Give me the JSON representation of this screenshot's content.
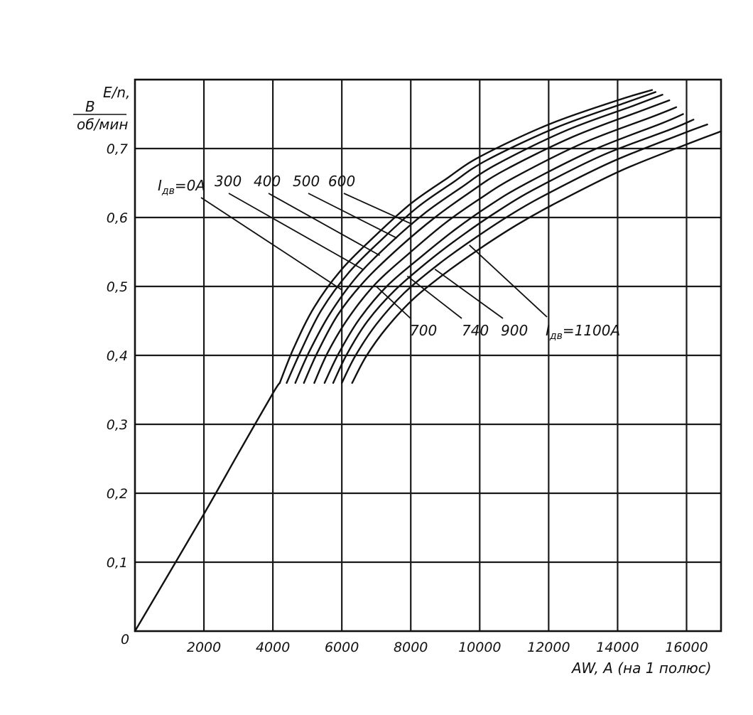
{
  "chart_data": {
    "type": "line",
    "title": "",
    "ylabel": {
      "top": "E/n,",
      "numerator": "B",
      "denominator": "об/мин"
    },
    "xlabel": "AW, A (на 1 полюс)",
    "xlim": [
      0,
      17000
    ],
    "ylim": [
      0,
      0.8
    ],
    "grid": true,
    "x_ticks": [
      "2000",
      "4000",
      "6000",
      "8000",
      "10000",
      "12000",
      "14000",
      "16000"
    ],
    "y_ticks": [
      "0,1",
      "0,2",
      "0,3",
      "0,4",
      "0,5",
      "0,6",
      "0,7"
    ],
    "origin_label": "0",
    "base_line": {
      "name": "I_дв=0A common segment",
      "points": [
        [
          0,
          0
        ],
        [
          2000,
          0.17
        ],
        [
          3000,
          0.258
        ],
        [
          4000,
          0.345
        ],
        [
          4200,
          0.36
        ]
      ]
    },
    "series": [
      {
        "label": "0",
        "points": [
          [
            4200,
            0.36
          ],
          [
            4600,
            0.41
          ],
          [
            5200,
            0.47
          ],
          [
            6000,
            0.525
          ],
          [
            7000,
            0.575
          ],
          [
            8000,
            0.62
          ],
          [
            9000,
            0.655
          ],
          [
            10000,
            0.688
          ],
          [
            12000,
            0.735
          ],
          [
            14000,
            0.77
          ],
          [
            15000,
            0.785
          ]
        ]
      },
      {
        "label": "300",
        "points": [
          [
            4400,
            0.36
          ],
          [
            4800,
            0.405
          ],
          [
            5400,
            0.465
          ],
          [
            6200,
            0.52
          ],
          [
            7200,
            0.57
          ],
          [
            8200,
            0.615
          ],
          [
            9200,
            0.65
          ],
          [
            10200,
            0.683
          ],
          [
            12200,
            0.73
          ],
          [
            14200,
            0.766
          ],
          [
            15100,
            0.782
          ]
        ]
      },
      {
        "label": "400",
        "points": [
          [
            4650,
            0.36
          ],
          [
            5050,
            0.405
          ],
          [
            5650,
            0.46
          ],
          [
            6450,
            0.515
          ],
          [
            7450,
            0.565
          ],
          [
            8450,
            0.608
          ],
          [
            9450,
            0.643
          ],
          [
            10450,
            0.676
          ],
          [
            12450,
            0.725
          ],
          [
            14450,
            0.762
          ],
          [
            15300,
            0.778
          ]
        ]
      },
      {
        "label": "500",
        "points": [
          [
            4900,
            0.36
          ],
          [
            5300,
            0.405
          ],
          [
            5900,
            0.46
          ],
          [
            6700,
            0.51
          ],
          [
            7700,
            0.558
          ],
          [
            8700,
            0.6
          ],
          [
            9700,
            0.636
          ],
          [
            10700,
            0.668
          ],
          [
            12700,
            0.717
          ],
          [
            14700,
            0.755
          ],
          [
            15500,
            0.77
          ]
        ]
      },
      {
        "label": "600",
        "points": [
          [
            5200,
            0.36
          ],
          [
            5600,
            0.405
          ],
          [
            6200,
            0.455
          ],
          [
            7000,
            0.505
          ],
          [
            8000,
            0.55
          ],
          [
            9000,
            0.592
          ],
          [
            10000,
            0.627
          ],
          [
            11000,
            0.658
          ],
          [
            13000,
            0.708
          ],
          [
            15000,
            0.746
          ],
          [
            15700,
            0.76
          ]
        ]
      },
      {
        "label": "700",
        "points": [
          [
            5500,
            0.36
          ],
          [
            5900,
            0.402
          ],
          [
            6500,
            0.452
          ],
          [
            7300,
            0.5
          ],
          [
            8300,
            0.543
          ],
          [
            9300,
            0.583
          ],
          [
            10300,
            0.618
          ],
          [
            11300,
            0.648
          ],
          [
            13300,
            0.698
          ],
          [
            15300,
            0.737
          ],
          [
            15900,
            0.75
          ]
        ]
      },
      {
        "label": "740",
        "points": [
          [
            5750,
            0.36
          ],
          [
            6150,
            0.402
          ],
          [
            6750,
            0.45
          ],
          [
            7550,
            0.495
          ],
          [
            8550,
            0.538
          ],
          [
            9550,
            0.576
          ],
          [
            10550,
            0.61
          ],
          [
            11550,
            0.64
          ],
          [
            13550,
            0.69
          ],
          [
            15550,
            0.728
          ],
          [
            16200,
            0.742
          ]
        ]
      },
      {
        "label": "900",
        "points": [
          [
            6000,
            0.36
          ],
          [
            6400,
            0.4
          ],
          [
            7000,
            0.445
          ],
          [
            7800,
            0.49
          ],
          [
            8800,
            0.532
          ],
          [
            9800,
            0.568
          ],
          [
            10800,
            0.601
          ],
          [
            11800,
            0.63
          ],
          [
            13800,
            0.68
          ],
          [
            15800,
            0.72
          ],
          [
            16600,
            0.735
          ]
        ]
      },
      {
        "label": "1100",
        "points": [
          [
            6300,
            0.36
          ],
          [
            6700,
            0.398
          ],
          [
            7300,
            0.44
          ],
          [
            8100,
            0.483
          ],
          [
            9100,
            0.523
          ],
          [
            10100,
            0.558
          ],
          [
            11100,
            0.59
          ],
          [
            12100,
            0.618
          ],
          [
            14100,
            0.668
          ],
          [
            16100,
            0.708
          ],
          [
            17000,
            0.725
          ]
        ]
      }
    ],
    "annotations": [
      {
        "text": "=0A",
        "prefix": "I",
        "sub": "дв",
        "position": "above-left",
        "target_series": "0"
      },
      {
        "text": "300",
        "position": "above-left",
        "target_series": "300"
      },
      {
        "text": "400",
        "position": "above-left",
        "target_series": "400"
      },
      {
        "text": "500",
        "position": "above-left",
        "target_series": "500"
      },
      {
        "text": "600",
        "position": "above-left",
        "target_series": "600"
      },
      {
        "text": "700",
        "position": "below-right",
        "target_series": "700"
      },
      {
        "text": "740",
        "position": "below-right",
        "target_series": "740"
      },
      {
        "text": "900",
        "position": "below-right",
        "target_series": "900"
      },
      {
        "text": "=1100A",
        "prefix": "I",
        "sub": "дв",
        "position": "below-right",
        "target_series": "1100"
      }
    ]
  }
}
